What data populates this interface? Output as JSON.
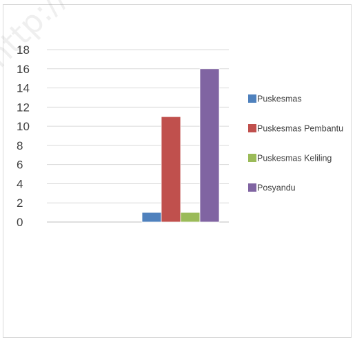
{
  "watermark": "http://bengi",
  "chart_data": {
    "type": "bar",
    "title": "",
    "xlabel": "",
    "ylabel": "",
    "ylim": [
      0,
      18
    ],
    "yticks": [
      0,
      2,
      4,
      6,
      8,
      10,
      12,
      14,
      16,
      18
    ],
    "grid": true,
    "legend_position": "right",
    "categories": [
      "",
      ""
    ],
    "series": [
      {
        "name": "Puskesmas",
        "color": "#4f81bd",
        "values": [
          0,
          1
        ]
      },
      {
        "name": "Puskesmas Pembantu",
        "color": "#c0504d",
        "values": [
          0,
          11
        ]
      },
      {
        "name": "Puskesmas Keliling",
        "color": "#9bbb59",
        "values": [
          0,
          1
        ]
      },
      {
        "name": "Posyandu",
        "color": "#8064a2",
        "values": [
          0,
          16
        ]
      }
    ]
  }
}
